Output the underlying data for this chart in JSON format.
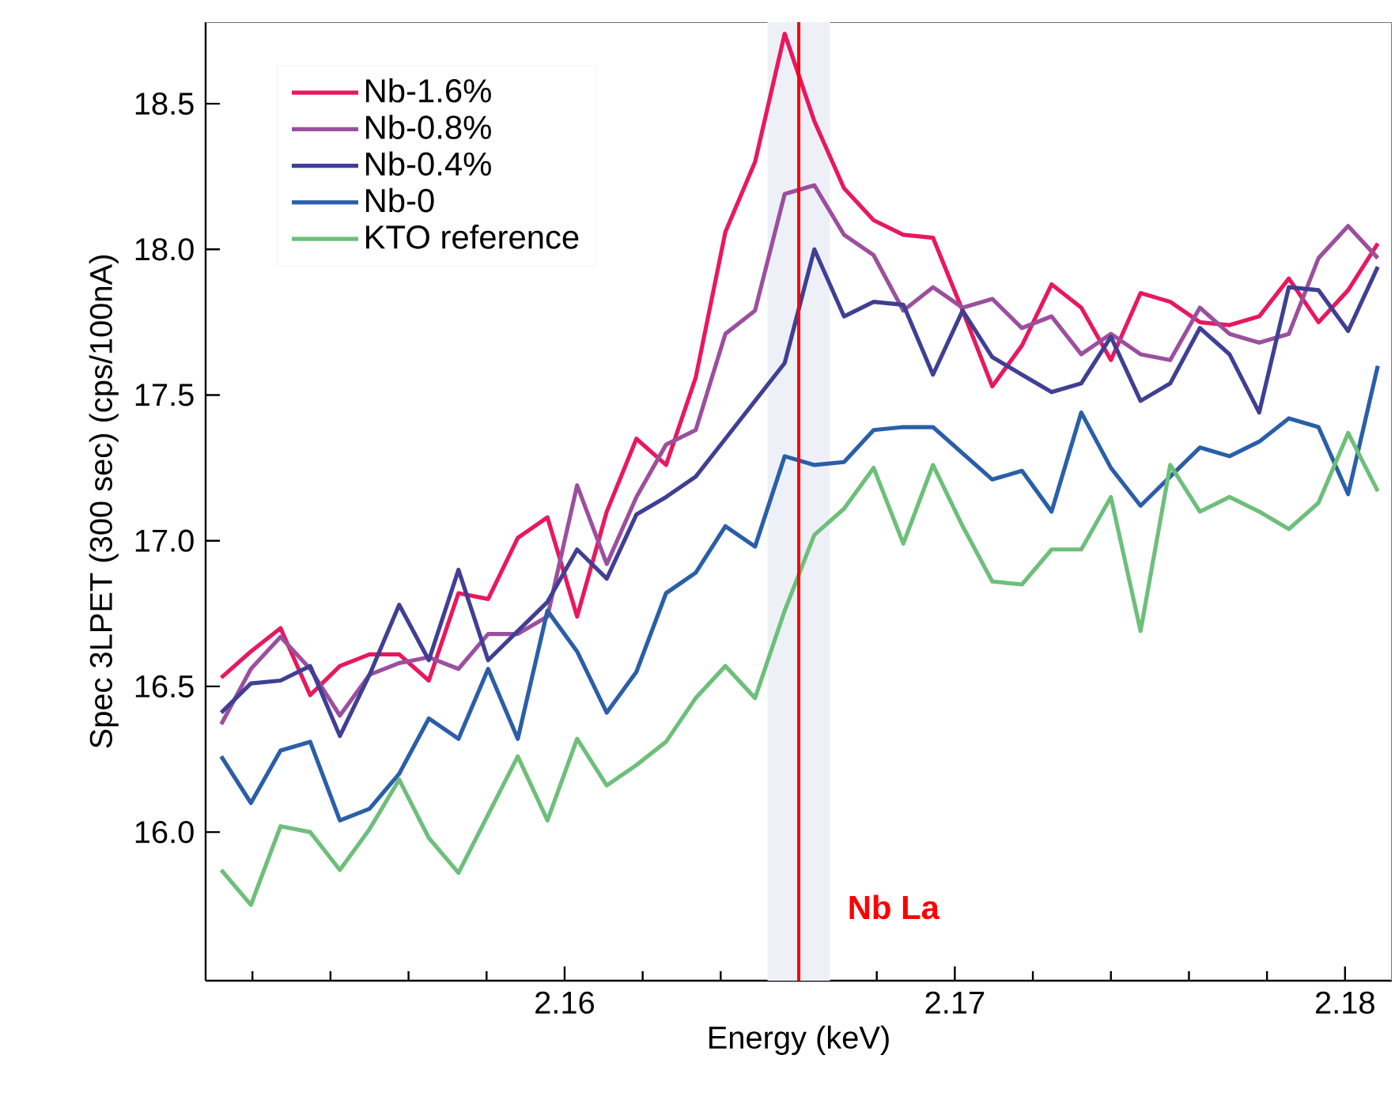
{
  "chart_data": {
    "type": "line",
    "xlabel": "Energy (keV)",
    "ylabel": "Spec 3LPET (300 sec) (cps/100nA)",
    "x": [
      2.1512,
      2.15196,
      2.15272,
      2.15348,
      2.15424,
      2.155,
      2.15576,
      2.15652,
      2.15728,
      2.15804,
      2.1588,
      2.15956,
      2.16032,
      2.16108,
      2.16184,
      2.1626,
      2.16336,
      2.16412,
      2.16488,
      2.16564,
      2.1664,
      2.16716,
      2.16792,
      2.16868,
      2.16944,
      2.1702,
      2.17096,
      2.17172,
      2.17248,
      2.17324,
      2.174,
      2.17476,
      2.17552,
      2.17628,
      2.17704,
      2.1778,
      2.17856,
      2.17932,
      2.18008,
      2.18084
    ],
    "series": [
      {
        "name": "Nb-1.6%",
        "color": "#e8185f",
        "values": [
          16.53,
          16.62,
          16.7,
          16.47,
          16.57,
          16.61,
          16.61,
          16.52,
          16.82,
          16.8,
          17.01,
          17.08,
          16.74,
          17.1,
          17.35,
          17.26,
          17.56,
          18.06,
          18.3,
          18.74,
          18.44,
          18.21,
          18.1,
          18.05,
          18.04,
          17.79,
          17.53,
          17.67,
          17.88,
          17.8,
          17.62,
          17.85,
          17.82,
          17.75,
          17.74,
          17.77,
          17.9,
          17.75,
          17.86,
          18.02
        ]
      },
      {
        "name": "Nb-0.8%",
        "color": "#9b4f9e",
        "values": [
          16.37,
          16.56,
          16.67,
          16.56,
          16.4,
          16.54,
          16.58,
          16.6,
          16.56,
          16.68,
          16.68,
          16.74,
          17.19,
          16.92,
          17.15,
          17.33,
          17.38,
          17.71,
          17.79,
          18.19,
          18.22,
          18.05,
          17.98,
          17.79,
          17.87,
          17.8,
          17.83,
          17.73,
          17.77,
          17.64,
          17.71,
          17.64,
          17.62,
          17.8,
          17.71,
          17.68,
          17.71,
          17.97,
          18.08,
          17.97
        ]
      },
      {
        "name": "Nb-0.4%",
        "color": "#3f3f94",
        "values": [
          16.41,
          16.51,
          16.52,
          16.57,
          16.33,
          16.54,
          16.78,
          16.59,
          16.9,
          16.59,
          16.69,
          16.79,
          16.97,
          16.87,
          17.09,
          17.15,
          17.22,
          17.35,
          17.48,
          17.61,
          18.0,
          17.77,
          17.82,
          17.81,
          17.57,
          17.79,
          17.63,
          17.57,
          17.51,
          17.54,
          17.7,
          17.48,
          17.54,
          17.73,
          17.64,
          17.44,
          17.87,
          17.86,
          17.72,
          17.94
        ]
      },
      {
        "name": "Nb-0",
        "color": "#2a5fa8",
        "values": [
          16.26,
          16.1,
          16.28,
          16.31,
          16.04,
          16.08,
          16.2,
          16.39,
          16.32,
          16.56,
          16.32,
          16.76,
          16.62,
          16.41,
          16.55,
          16.82,
          16.89,
          17.05,
          16.98,
          17.29,
          17.26,
          17.27,
          17.38,
          17.39,
          17.39,
          17.3,
          17.21,
          17.24,
          17.1,
          17.44,
          17.25,
          17.12,
          17.22,
          17.32,
          17.29,
          17.34,
          17.42,
          17.39,
          17.16,
          17.6
        ]
      },
      {
        "name": "KTO reference",
        "color": "#6dbf7a",
        "values": [
          15.87,
          15.75,
          16.02,
          16.0,
          15.87,
          16.01,
          16.18,
          15.98,
          15.86,
          16.06,
          16.26,
          16.04,
          16.32,
          16.16,
          16.23,
          16.31,
          16.46,
          16.57,
          16.46,
          16.76,
          17.02,
          17.11,
          17.25,
          16.99,
          17.26,
          17.05,
          16.86,
          16.85,
          16.97,
          16.97,
          17.15,
          16.69,
          17.26,
          17.1,
          17.15,
          17.1,
          17.04,
          17.13,
          17.37,
          17.17
        ]
      }
    ],
    "xlim": [
      2.1508,
      2.1812
    ],
    "xticks": [
      {
        "value": 2.152,
        "label": null
      },
      {
        "value": 2.154,
        "label": null
      },
      {
        "value": 2.156,
        "label": null
      },
      {
        "value": 2.158,
        "label": null
      },
      2.16,
      {
        "value": 2.162,
        "label": null
      },
      {
        "value": 2.164,
        "label": null
      },
      {
        "value": 2.166,
        "label": null
      },
      {
        "value": 2.168,
        "label": null
      },
      2.17,
      {
        "value": 2.172,
        "label": null
      },
      {
        "value": 2.174,
        "label": null
      },
      {
        "value": 2.176,
        "label": null
      },
      {
        "value": 2.178,
        "label": null
      },
      2.18
    ],
    "ylim": [
      15.49,
      18.78
    ],
    "yticks": [
      {
        "value": 16,
        "label": "16.0"
      },
      16.5,
      {
        "value": 17,
        "label": "17.0"
      },
      17.5,
      {
        "value": 18,
        "label": "18.0"
      },
      18.5
    ],
    "ref_lines": [
      {
        "axis": "x",
        "value": 2.166,
        "label": "Nb La",
        "color": "#ff0000"
      }
    ],
    "bands": [
      {
        "axis": "x",
        "from": 2.1652,
        "to": 2.1668,
        "color": "#eef0f8"
      }
    ],
    "legend": "top left",
    "marker": "none",
    "line_style": "solid",
    "grid": false
  }
}
